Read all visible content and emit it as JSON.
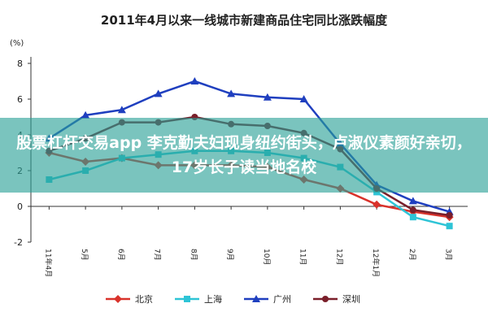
{
  "chart_data": {
    "type": "line",
    "title": "2011年4月以来一线城市新建商品住宅同比涨跌幅度",
    "y_label": "(%)",
    "categories": [
      "11年4月",
      "5月",
      "6月",
      "7月",
      "8月",
      "9月",
      "10月",
      "11月",
      "12月",
      "12年1月",
      "2月",
      "3月"
    ],
    "series": [
      {
        "name": "北京",
        "color": "#d9322b",
        "marker": "diamond",
        "values": [
          3.0,
          2.5,
          2.7,
          2.3,
          2.3,
          2.3,
          2.2,
          1.5,
          1.0,
          0.1,
          -0.3,
          -0.6
        ]
      },
      {
        "name": "上海",
        "color": "#2ec4d6",
        "marker": "square",
        "values": [
          1.5,
          2.0,
          2.7,
          2.9,
          3.1,
          3.1,
          3.0,
          2.7,
          2.2,
          0.8,
          -0.6,
          -1.1
        ]
      },
      {
        "name": "广州",
        "color": "#1f3fbf",
        "marker": "triangle",
        "values": [
          3.8,
          5.1,
          5.4,
          6.3,
          7.0,
          6.3,
          6.1,
          6.0,
          3.5,
          1.2,
          0.3,
          -0.3
        ]
      },
      {
        "name": "深圳",
        "color": "#7a1f2a",
        "marker": "circle",
        "values": [
          3.1,
          3.8,
          4.7,
          4.7,
          5.0,
          4.6,
          4.5,
          4.1,
          3.2,
          1.0,
          -0.2,
          -0.5
        ]
      }
    ],
    "ylim": [
      -2,
      8
    ],
    "yticks": [
      -2,
      0,
      2,
      4,
      6,
      8
    ],
    "grid": false,
    "legend": "bottom"
  },
  "overlay_text": "股票杠杆交易app 李克勤夫妇现身纽约街头，卢淑仪素颜好亲切，17岁长子读当地名校"
}
